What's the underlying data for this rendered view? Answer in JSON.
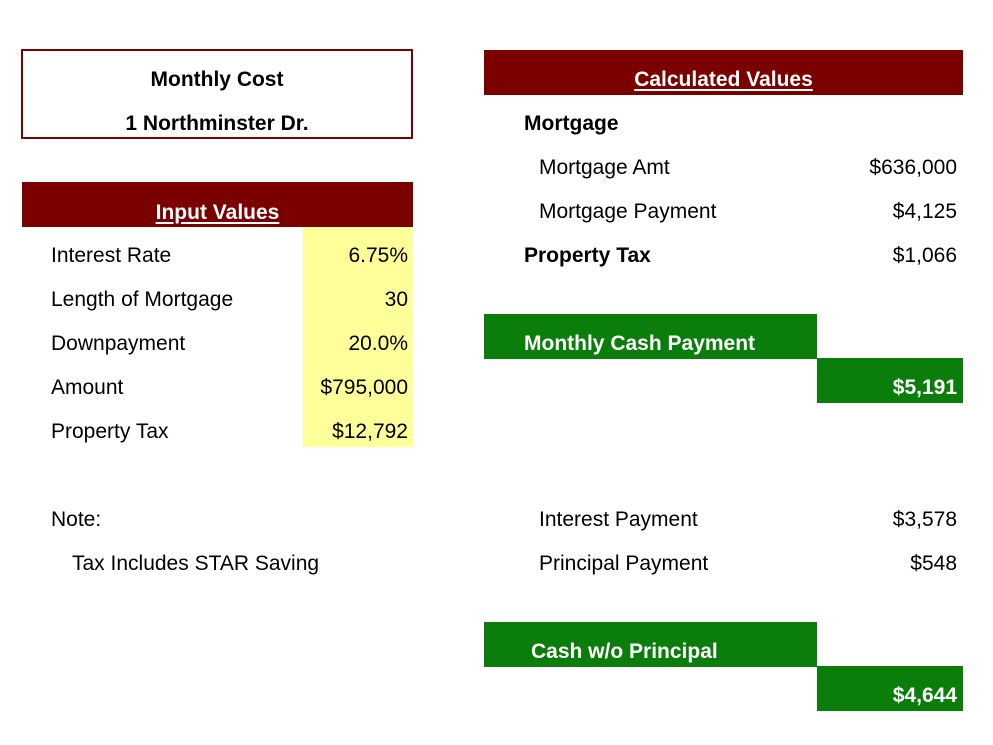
{
  "title": {
    "heading": "Monthly Cost",
    "address": "1 Northminster Dr."
  },
  "inputs": {
    "header": "Input Values",
    "rows": [
      {
        "label": "Interest Rate",
        "value": "6.75%"
      },
      {
        "label": "Length of Mortgage",
        "value": "30"
      },
      {
        "label": "Downpayment",
        "value": "20.0%"
      },
      {
        "label": "Amount",
        "value": "$795,000"
      },
      {
        "label": "Property Tax",
        "value": "$12,792"
      }
    ]
  },
  "note": {
    "label": "Note:",
    "text": "Tax Includes STAR Saving"
  },
  "calculated": {
    "header": "Calculated Values",
    "mortgage_label": "Mortgage",
    "mortgage_amt_label": "Mortgage Amt",
    "mortgage_amt_value": "$636,000",
    "mortgage_payment_label": "Mortgage Payment",
    "mortgage_payment_value": "$4,125",
    "property_tax_label": "Property Tax",
    "property_tax_value": "$1,066",
    "monthly_cash_label": "Monthly Cash Payment",
    "monthly_cash_value": "$5,191",
    "interest_payment_label": "Interest Payment",
    "interest_payment_value": "$3,578",
    "principal_payment_label": "Principal Payment",
    "principal_payment_value": "$548",
    "cash_wo_principal_label": "Cash w/o Principal",
    "cash_wo_principal_value": "$4,644"
  },
  "colors": {
    "maroon": "#7b0000",
    "green": "#0a7d0a",
    "input_highlight": "#ffff99"
  }
}
